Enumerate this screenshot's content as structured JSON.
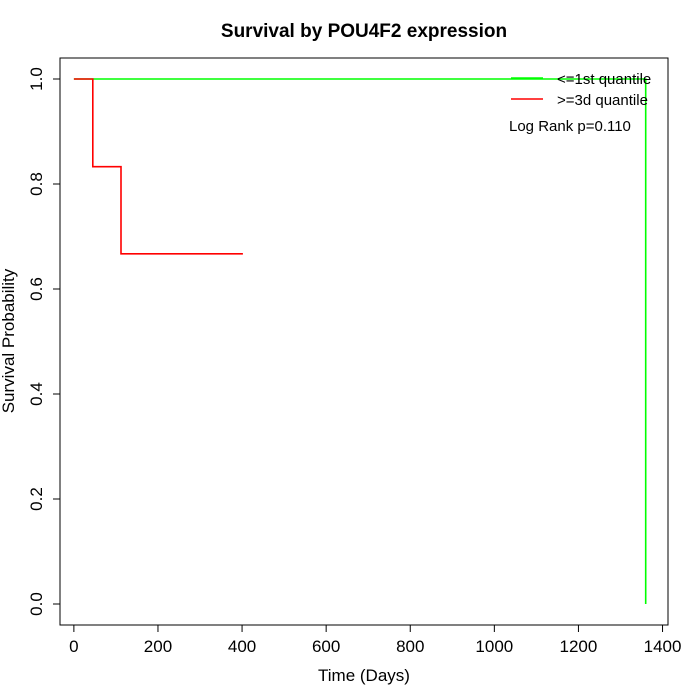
{
  "chart_data": {
    "type": "line",
    "title": "Survival by POU4F2 expression",
    "xlabel": "Time (Days)",
    "ylabel": "Survival Probability",
    "xlim": [
      -33,
      1413
    ],
    "ylim": [
      -0.04,
      1.04
    ],
    "x_ticks": [
      0,
      200,
      400,
      600,
      800,
      1000,
      1200,
      1400
    ],
    "y_ticks": [
      0.0,
      0.2,
      0.4,
      0.6,
      0.8,
      1.0
    ],
    "x_tick_labels": [
      "0",
      "200",
      "400",
      "600",
      "800",
      "1000",
      "1200",
      "1400"
    ],
    "y_tick_labels": [
      "0.0",
      "0.2",
      "0.4",
      "0.6",
      "0.8",
      "1.0"
    ],
    "grid": false,
    "legend_position": "top-right",
    "series": [
      {
        "name": "<=1st quantile",
        "color": "#00ff00",
        "step": true,
        "x": [
          0,
          1360,
          1360
        ],
        "y": [
          1.0,
          1.0,
          0.0
        ]
      },
      {
        "name": ">=3d quantile",
        "color": "#ff0000",
        "step": true,
        "x": [
          0,
          45,
          45,
          112,
          112,
          402
        ],
        "y": [
          1.0,
          1.0,
          0.833,
          0.833,
          0.667,
          0.667
        ]
      }
    ],
    "annotations": [
      "Log Rank p=0.110"
    ]
  }
}
